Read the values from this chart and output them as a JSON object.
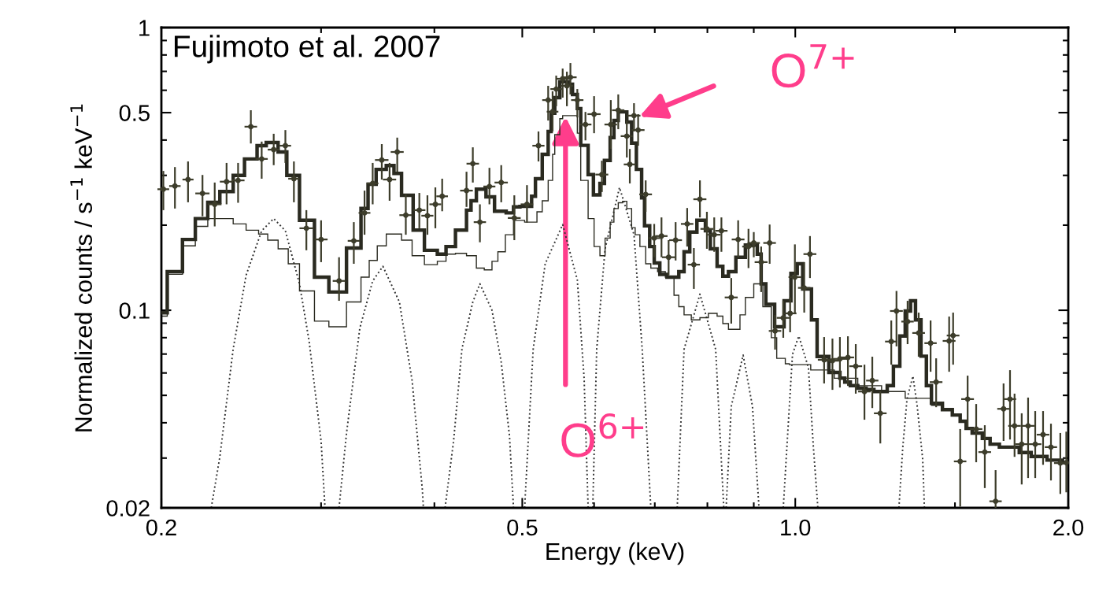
{
  "chart_data": {
    "type": "step",
    "xlabel": "Energy (keV)",
    "ylabel": "Normalized counts / s$^{−1}$ keV$^{−1}$",
    "log": "xy",
    "xlim": [
      0.2,
      2
    ],
    "ylim": [
      0.02,
      1
    ],
    "xticks": [
      0.2,
      {
        "value": 0.3,
        "label": null
      },
      {
        "value": 0.4,
        "label": null
      },
      0.5,
      {
        "value": 0.6,
        "label": null
      },
      {
        "value": 0.7,
        "label": null
      },
      {
        "value": 0.8,
        "label": null
      },
      {
        "value": 0.9,
        "label": null
      },
      {
        "value": 1,
        "label": "1.0"
      },
      {
        "value": 1.5,
        "label": null
      },
      {
        "value": 2,
        "label": "2.0"
      }
    ],
    "yticks": [
      0.02,
      {
        "value": 0.03,
        "label": null
      },
      {
        "value": 0.04,
        "label": null
      },
      {
        "value": 0.05,
        "label": null
      },
      {
        "value": 0.06,
        "label": null
      },
      {
        "value": 0.07,
        "label": null
      },
      {
        "value": 0.08,
        "label": null
      },
      {
        "value": 0.09,
        "label": null
      },
      0.1,
      {
        "value": 0.2,
        "label": null
      },
      {
        "value": 0.3,
        "label": null
      },
      {
        "value": 0.4,
        "label": null
      },
      0.5,
      {
        "value": 0.6,
        "label": null
      },
      {
        "value": 0.7,
        "label": null
      },
      {
        "value": 0.8,
        "label": null
      },
      {
        "value": 0.9,
        "label": null
      },
      1
    ],
    "grid": false,
    "legend": false,
    "annotations": [
      "Fujimoto et al. 2007",
      {
        "text": "O$^{6+}$",
        "x": 0.558,
        "y": 0.484
      },
      {
        "text": "O$^{7+}$",
        "x": 0.673,
        "y": 0.484
      }
    ],
    "series": [
      {
        "type": "scatter",
        "color": "#3d3d2b",
        "x": [
          0.201,
          0.207,
          0.214,
          0.222,
          0.229,
          0.236,
          0.243,
          0.251,
          0.258,
          0.266,
          0.274,
          0.28,
          0.289,
          0.3,
          0.314,
          0.326,
          0.335,
          0.342,
          0.35,
          0.357,
          0.364,
          0.372,
          0.385,
          0.393,
          0.401,
          0.408,
          0.434,
          0.441,
          0.449,
          0.46,
          0.474,
          0.49,
          0.506,
          0.521,
          0.534,
          0.54,
          0.545,
          0.554,
          0.56,
          0.565,
          0.575,
          0.587,
          0.6,
          0.612,
          0.626,
          0.638,
          0.652,
          0.657,
          0.664,
          0.671,
          0.684,
          0.699,
          0.712,
          0.725,
          0.738,
          0.76,
          0.773,
          0.785,
          0.799,
          0.814,
          0.829,
          0.85,
          0.865,
          0.888,
          0.9,
          0.917,
          0.937,
          0.95,
          0.97,
          0.987,
          0.999,
          1.023,
          1.038,
          1.076,
          1.099,
          1.12,
          1.143,
          1.166,
          1.192,
          1.216,
          1.241,
          1.276,
          1.293,
          1.33,
          1.368,
          1.41,
          1.43,
          1.478,
          1.493,
          1.52,
          1.549,
          1.583,
          1.618,
          1.663,
          1.697,
          1.725,
          1.745,
          1.777,
          1.806,
          1.839,
          1.876,
          1.914,
          1.96,
          1.99
        ],
        "values": [
          0.268,
          0.275,
          0.29,
          0.259,
          0.237,
          0.285,
          0.288,
          0.446,
          0.343,
          0.37,
          0.382,
          0.292,
          0.195,
          0.178,
          0.127,
          0.176,
          0.221,
          0.281,
          0.34,
          0.29,
          0.363,
          0.217,
          0.226,
          0.216,
          0.237,
          0.253,
          0.265,
          0.33,
          0.205,
          0.274,
          0.283,
          0.212,
          0.237,
          0.382,
          0.554,
          0.504,
          0.606,
          0.659,
          0.622,
          0.667,
          0.554,
          0.454,
          0.494,
          0.302,
          0.454,
          0.51,
          0.413,
          0.328,
          0.488,
          0.434,
          0.257,
          0.18,
          0.183,
          0.154,
          0.177,
          0.202,
          0.145,
          0.247,
          0.194,
          0.185,
          0.191,
          0.111,
          0.178,
          0.168,
          0.173,
          0.148,
          0.173,
          0.0845,
          0.094,
          0.0975,
          0.131,
          0.12,
          0.158,
          0.0668,
          0.0663,
          0.0673,
          0.0681,
          0.0634,
          0.0516,
          0.0564,
          0.0432,
          0.0775,
          0.0994,
          0.0912,
          0.0831,
          0.0765,
          0.0557,
          0.0779,
          0.0814,
          0.0292,
          0.0485,
          0.038,
          0.0315,
          0.0211,
          0.0448,
          0.0485,
          0.039,
          0.0336,
          0.039,
          0.0336,
          0.0363,
          0.0328,
          0.0288,
          0.0289
        ],
        "errors": [
          [
            0.226,
            0.311
          ],
          [
            0.229,
            0.321
          ],
          [
            0.241,
            0.336
          ],
          [
            0.215,
            0.301
          ],
          [
            0.198,
            0.283
          ],
          [
            0.237,
            0.332
          ],
          [
            0.24,
            0.332
          ],
          [
            0.389,
            0.51
          ],
          [
            0.292,
            0.395
          ],
          [
            0.326,
            0.421
          ],
          [
            0.332,
            0.434
          ],
          [
            0.241,
            0.336
          ],
          [
            0.163,
            0.226
          ],
          [
            0.148,
            0.208
          ],
          [
            0.108,
            0.154
          ],
          [
            0.146,
            0.205
          ],
          [
            0.185,
            0.265
          ],
          [
            0.237,
            0.332
          ],
          [
            0.29,
            0.387
          ],
          [
            0.244,
            0.332
          ],
          [
            0.309,
            0.408
          ],
          [
            0.185,
            0.257
          ],
          [
            0.195,
            0.26
          ],
          [
            0.185,
            0.255
          ],
          [
            0.195,
            0.272
          ],
          [
            0.224,
            0.292
          ],
          [
            0.232,
            0.309
          ],
          [
            0.283,
            0.377
          ],
          [
            0.174,
            0.237
          ],
          [
            0.237,
            0.319
          ],
          [
            0.241,
            0.326
          ],
          [
            0.177,
            0.255
          ],
          [
            0.204,
            0.277
          ],
          [
            0.336,
            0.429
          ],
          [
            0.469,
            0.622
          ],
          [
            0.429,
            0.595
          ],
          [
            0.527,
            0.676
          ],
          [
            0.565,
            0.716
          ],
          [
            0.527,
            0.698
          ],
          [
            0.58,
            0.749
          ],
          [
            0.481,
            0.606
          ],
          [
            0.399,
            0.503
          ],
          [
            0.423,
            0.572
          ],
          [
            0.262,
            0.338
          ],
          [
            0.372,
            0.554
          ],
          [
            0.437,
            0.58
          ],
          [
            0.347,
            0.469
          ],
          [
            0.281,
            0.372
          ],
          [
            0.429,
            0.54
          ],
          [
            0.382,
            0.494
          ],
          [
            0.223,
            0.288
          ],
          [
            0.154,
            0.202
          ],
          [
            0.154,
            0.213
          ],
          [
            0.133,
            0.177
          ],
          [
            0.15,
            0.205
          ],
          [
            0.168,
            0.23
          ],
          [
            0.119,
            0.166
          ],
          [
            0.213,
            0.288
          ],
          [
            0.165,
            0.223
          ],
          [
            0.161,
            0.213
          ],
          [
            0.161,
            0.213
          ],
          [
            0.0897,
            0.13
          ],
          [
            0.154,
            0.208
          ],
          [
            0.141,
            0.194
          ],
          [
            0.154,
            0.189
          ],
          [
            0.116,
            0.168
          ],
          [
            0.146,
            0.201
          ],
          [
            0.0726,
            0.0962
          ],
          [
            0.0799,
            0.108
          ],
          [
            0.0836,
            0.111
          ],
          [
            0.0981,
            0.171
          ],
          [
            0.0981,
            0.148
          ],
          [
            0.13,
            0.183
          ],
          [
            0.0551,
            0.0804
          ],
          [
            0.0523,
            0.0794
          ],
          [
            0.0533,
            0.0804
          ],
          [
            0.054,
            0.0809
          ],
          [
            0.0507,
            0.0759
          ],
          [
            0.041,
            0.0642
          ],
          [
            0.0451,
            0.0685
          ],
          [
            0.0338,
            0.0517
          ],
          [
            0.0642,
            0.092
          ],
          [
            0.0745,
            0.117
          ],
          [
            0.0759,
            0.108
          ],
          [
            0.0685,
            0.0981
          ],
          [
            0.0606,
            0.092
          ],
          [
            0.0454,
            0.0676
          ],
          [
            0.0606,
            0.095
          ],
          [
            0.0642,
            0.0981
          ],
          [
            0.0202,
            0.038
          ],
          [
            0.0387,
            0.0587
          ],
          [
            0.029,
            0.0466
          ],
          [
            0.0235,
            0.0392
          ],
          [
            0.02,
            0.0272
          ],
          [
            0.0345,
            0.0551
          ],
          [
            0.0349,
            0.0614
          ],
          [
            0.0303,
            0.0507
          ],
          [
            0.0242,
            0.0432
          ],
          [
            0.0255,
            0.0491
          ],
          [
            0.0255,
            0.044
          ],
          [
            0.0284,
            0.044
          ],
          [
            0.025,
            0.0397
          ],
          [
            0.0224,
            0.0368
          ],
          [
            0.0227,
            0.0372
          ]
        ],
        "xerrors": [
          0.003,
          0.003,
          0.003,
          0.004,
          0.004,
          0.004,
          0.004,
          0.004,
          0.004,
          0.004,
          0.004,
          0.004,
          0.005,
          0.005,
          0.005,
          0.005,
          0.005,
          0.005,
          0.006,
          0.006,
          0.006,
          0.006,
          0.006,
          0.006,
          0.006,
          0.006,
          0.007,
          0.007,
          0.007,
          0.007,
          0.008,
          0.008,
          0.008,
          0.008,
          0.008,
          0.008,
          0.008,
          0.009,
          0.009,
          0.009,
          0.009,
          0.009,
          0.01,
          0.01,
          0.01,
          0.01,
          0.01,
          0.01,
          0.011,
          0.011,
          0.011,
          0.011,
          0.011,
          0.012,
          0.012,
          0.012,
          0.012,
          0.013,
          0.013,
          0.013,
          0.013,
          0.014,
          0.014,
          0.014,
          0.014,
          0.015,
          0.015,
          0.015,
          0.016,
          0.016,
          0.016,
          0.016,
          0.017,
          0.017,
          0.018,
          0.018,
          0.018,
          0.019,
          0.019,
          0.019,
          0.02,
          0.02,
          0.021,
          0.021,
          0.022,
          0.022,
          0.023,
          0.024,
          0.024,
          0.024,
          0.025,
          0.025,
          0.026,
          0.026,
          0.027,
          0.027,
          0.028,
          0.028,
          0.029,
          0.029,
          0.03,
          0.03,
          0.031,
          0.01
        ]
      },
      {
        "color": "#2a2a20",
        "x": [
          0.2,
          0.203,
          0.211,
          0.218,
          0.225,
          0.232,
          0.24,
          0.247,
          0.255,
          0.261,
          0.269,
          0.275,
          0.284,
          0.295,
          0.306,
          0.32,
          0.332,
          0.338,
          0.345,
          0.354,
          0.361,
          0.368,
          0.379,
          0.39,
          0.403,
          0.412,
          0.422,
          0.434,
          0.439,
          0.445,
          0.456,
          0.466,
          0.48,
          0.489,
          0.497,
          0.512,
          0.517,
          0.526,
          0.534,
          0.538,
          0.543,
          0.55,
          0.562,
          0.568,
          0.575,
          0.58,
          0.591,
          0.599,
          0.609,
          0.616,
          0.625,
          0.631,
          0.638,
          0.652,
          0.66,
          0.668,
          0.677,
          0.682,
          0.691,
          0.699,
          0.709,
          0.722,
          0.744,
          0.754,
          0.765,
          0.779,
          0.796,
          0.806,
          0.82,
          0.832,
          0.844,
          0.86,
          0.881,
          0.908,
          0.917,
          0.928,
          0.949,
          0.972,
          0.989,
          1.005,
          1.019,
          1.042,
          1.057,
          1.089,
          1.12,
          1.134,
          1.15,
          1.172,
          1.197,
          1.221,
          1.263,
          1.283,
          1.304,
          1.322,
          1.34,
          1.357,
          1.376,
          1.395,
          1.413,
          1.453,
          1.49,
          1.52,
          1.543,
          1.567,
          1.608,
          1.64,
          1.679,
          1.766,
          1.82,
          1.895,
          1.971,
          2
        ],
        "values": [
          0.098,
          0.137,
          0.178,
          0.211,
          0.241,
          0.263,
          0.3,
          0.343,
          0.382,
          0.392,
          0.363,
          0.3,
          0.208,
          0.131,
          0.116,
          0.166,
          0.229,
          0.279,
          0.315,
          0.325,
          0.305,
          0.255,
          0.192,
          0.163,
          0.158,
          0.168,
          0.192,
          0.226,
          0.244,
          0.268,
          0.252,
          0.224,
          0.221,
          0.232,
          0.233,
          0.253,
          0.292,
          0.356,
          0.429,
          0.498,
          0.565,
          0.643,
          0.63,
          0.58,
          0.517,
          0.383,
          0.302,
          0.256,
          0.281,
          0.339,
          0.408,
          0.469,
          0.503,
          0.463,
          0.39,
          0.315,
          0.25,
          0.199,
          0.168,
          0.147,
          0.134,
          0.131,
          0.137,
          0.161,
          0.189,
          0.208,
          0.191,
          0.165,
          0.143,
          0.132,
          0.137,
          0.154,
          0.17,
          0.158,
          0.124,
          0.105,
          0.0874,
          0.108,
          0.135,
          0.146,
          0.119,
          0.0925,
          0.0686,
          0.0603,
          0.0575,
          0.0557,
          0.0541,
          0.053,
          0.0524,
          0.0516,
          0.0541,
          0.0634,
          0.0811,
          0.0994,
          0.108,
          0.0925,
          0.0688,
          0.0541,
          0.0469,
          0.0445,
          0.0426,
          0.0405,
          0.0382,
          0.0368,
          0.0352,
          0.0336,
          0.0328,
          0.0314,
          0.0304,
          0.0295,
          0.0289,
          0.0289
        ]
      },
      {
        "color": "#2a2a20",
        "x": [
          0.2,
          0.203,
          0.211,
          0.218,
          0.225,
          0.24,
          0.248,
          0.256,
          0.262,
          0.269,
          0.276,
          0.284,
          0.295,
          0.306,
          0.32,
          0.332,
          0.339,
          0.346,
          0.354,
          0.368,
          0.378,
          0.39,
          0.403,
          0.412,
          0.422,
          0.434,
          0.445,
          0.454,
          0.463,
          0.47,
          0.479,
          0.489,
          0.503,
          0.519,
          0.526,
          0.534,
          0.54,
          0.543,
          0.55,
          0.554,
          0.575,
          0.58,
          0.591,
          0.6,
          0.609,
          0.617,
          0.625,
          0.631,
          0.638,
          0.645,
          0.652,
          0.66,
          0.666,
          0.674,
          0.684,
          0.693,
          0.705,
          0.719,
          0.735,
          0.744,
          0.754,
          0.768,
          0.785,
          0.802,
          0.82,
          0.832,
          0.844,
          0.869,
          0.881,
          0.9,
          0.921,
          0.941,
          0.954,
          0.975,
          0.985,
          1.04,
          1.104,
          1.172,
          1.245,
          1.322,
          1.413,
          1.453,
          1.49,
          1.52,
          1.543,
          1.567,
          1.608,
          1.64,
          1.679,
          1.766,
          1.82,
          1.895,
          1.971,
          2
        ],
        "values": [
          0.0953,
          0.134,
          0.169,
          0.198,
          0.211,
          0.202,
          0.192,
          0.186,
          0.177,
          0.165,
          0.146,
          0.117,
          0.0915,
          0.0874,
          0.107,
          0.131,
          0.15,
          0.169,
          0.186,
          0.177,
          0.156,
          0.145,
          0.149,
          0.158,
          0.159,
          0.156,
          0.141,
          0.139,
          0.149,
          0.161,
          0.185,
          0.208,
          0.205,
          0.223,
          0.244,
          0.288,
          0.356,
          0.418,
          0.476,
          0.488,
          0.423,
          0.288,
          0.211,
          0.168,
          0.156,
          0.18,
          0.205,
          0.229,
          0.24,
          0.243,
          0.229,
          0.196,
          0.185,
          0.168,
          0.146,
          0.141,
          0.137,
          0.131,
          0.113,
          0.103,
          0.0963,
          0.0925,
          0.0941,
          0.0975,
          0.0953,
          0.0897,
          0.0856,
          0.0963,
          0.111,
          0.124,
          0.103,
          0.08,
          0.0676,
          0.0647,
          0.0642,
          0.0615,
          0.0575,
          0.0541,
          0.0516,
          0.0488,
          0.0461,
          0.0445,
          0.0426,
          0.0405,
          0.0382,
          0.0368,
          0.0352,
          0.0336,
          0.0328,
          0.0314,
          0.0304,
          0.0295,
          0.0289,
          0.0289
        ]
      },
      {
        "type": "line",
        "line_style": "dotted",
        "color": "#333333",
        "x": [
          0.227,
          0.232,
          0.24,
          0.248,
          0.258,
          0.266,
          0.274,
          0.284,
          0.291,
          0.3,
          0.303
        ],
        "values": [
          0.02,
          0.0303,
          0.073,
          0.133,
          0.191,
          0.211,
          0.191,
          0.124,
          0.0779,
          0.0345,
          0.02
        ]
      },
      {
        "type": "line",
        "line_style": "dotted",
        "color": "#333333",
        "x": [
          0.314,
          0.32,
          0.331,
          0.342,
          0.351,
          0.366,
          0.378,
          0.388,
          0.389
        ],
        "values": [
          0.02,
          0.0367,
          0.0864,
          0.127,
          0.143,
          0.107,
          0.0564,
          0.0231,
          0.02
        ]
      },
      {
        "type": "line",
        "line_style": "dotted",
        "color": "#333333",
        "x": [
          0.411,
          0.42,
          0.429,
          0.441,
          0.449,
          0.463,
          0.474,
          0.484,
          0.489
        ],
        "values": [
          0.02,
          0.0345,
          0.073,
          0.107,
          0.124,
          0.1,
          0.0655,
          0.036,
          0.02
        ]
      },
      {
        "type": "line",
        "line_style": "dotted",
        "color": "#333333",
        "x": [
          0.503,
          0.514,
          0.53,
          0.554,
          0.575,
          0.585,
          0.591
        ],
        "values": [
          0.02,
          0.0727,
          0.146,
          0.201,
          0.128,
          0.0575,
          0.02
        ]
      },
      {
        "type": "line",
        "line_style": "dotted",
        "color": "#333333",
        "x": [
          0.598,
          0.604,
          0.617,
          0.64,
          0.664,
          0.678,
          0.693
        ],
        "values": [
          0.02,
          0.0727,
          0.165,
          0.272,
          0.185,
          0.0727,
          0.02
        ]
      },
      {
        "type": "line",
        "line_style": "dotted",
        "color": "#333333",
        "x": [
          0.741,
          0.754,
          0.785,
          0.817,
          0.834
        ],
        "values": [
          0.02,
          0.0727,
          0.114,
          0.0727,
          0.02
        ]
      },
      {
        "type": "line",
        "line_style": "dotted",
        "color": "#333333",
        "x": [
          0.839,
          0.85,
          0.876,
          0.897,
          0.912
        ],
        "values": [
          0.02,
          0.0457,
          0.0694,
          0.0457,
          0.02
        ]
      },
      {
        "type": "line",
        "line_style": "dotted",
        "color": "#333333",
        "x": [
          0.97,
          0.979,
          0.993,
          1.009,
          1.034,
          1.047,
          1.059
        ],
        "values": [
          0.02,
          0.0329,
          0.0699,
          0.0811,
          0.0626,
          0.0329,
          0.02
        ]
      },
      {
        "type": "line",
        "line_style": "dotted",
        "color": "#333333",
        "x": [
          1.301,
          1.314,
          1.328,
          1.348,
          1.362,
          1.382,
          1.388
        ],
        "values": [
          0.02,
          0.0329,
          0.0485,
          0.0585,
          0.0466,
          0.0297,
          0.02
        ]
      }
    ]
  }
}
